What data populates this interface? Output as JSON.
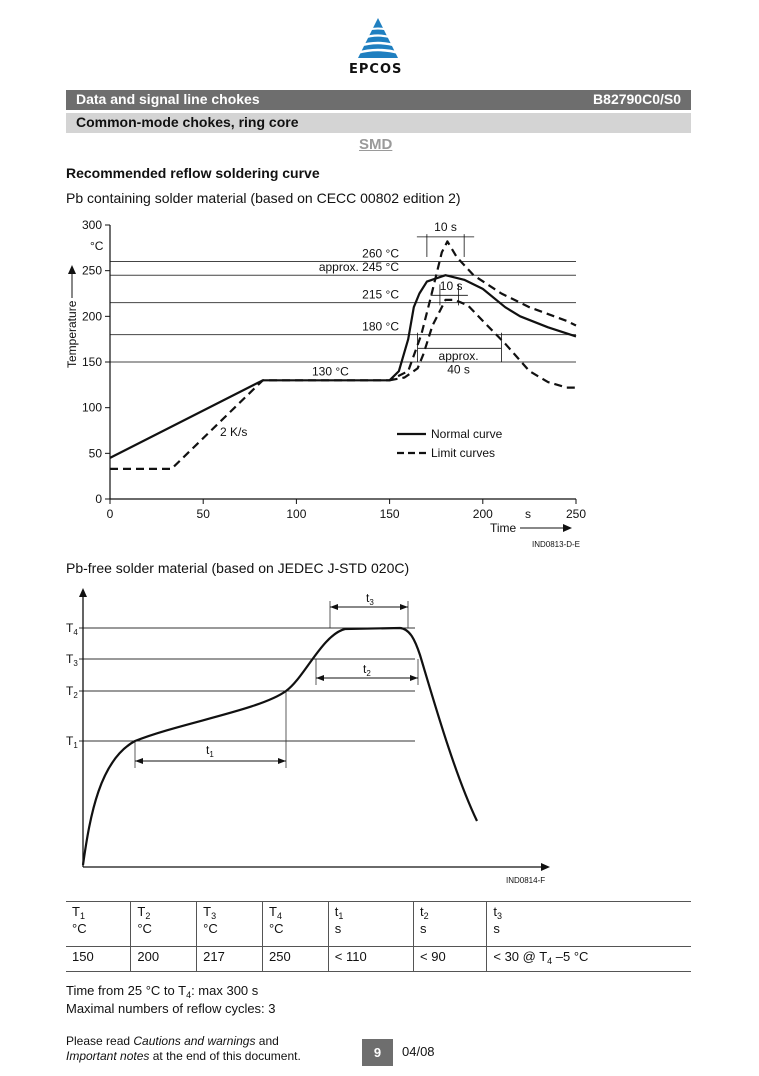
{
  "brand": {
    "name": "EPCOS"
  },
  "header": {
    "title": "Data and signal line chokes",
    "part_number": "B82790C0/S0",
    "subtitle": "Common-mode chokes, ring core",
    "package": "SMD"
  },
  "section": {
    "heading": "Recommended reflow soldering curve",
    "pb_caption": "Pb containing solder material (based on CECC 00802 edition 2)",
    "pbfree_caption": "Pb-free solder material (based on JEDEC J-STD 020C)"
  },
  "chart_data": [
    {
      "type": "line",
      "ylabel": "Temperature",
      "yunit": "°C",
      "xlabel": "Time",
      "xunit": "s",
      "xlim": [
        0,
        250
      ],
      "ylim": [
        0,
        300
      ],
      "xticks": [
        0,
        50,
        100,
        150,
        200,
        250
      ],
      "yticks": [
        0,
        50,
        100,
        150,
        200,
        250,
        300
      ],
      "reference_lines": [
        {
          "y": 260,
          "label": "260 °C"
        },
        {
          "y": 245,
          "label": "approx. 245 °C"
        },
        {
          "y": 215,
          "label": "215 °C"
        },
        {
          "y": 180,
          "label": "180 °C"
        },
        {
          "y": 150,
          "label": ""
        }
      ],
      "annotations": {
        "plateau": "130 °C",
        "ramp": "2 K/s",
        "peak_window_top": "10 s",
        "peak_window_mid": "10 s",
        "above_180_line1": "approx.",
        "above_180_line2": "40 s"
      },
      "legend": {
        "position": "bottom-right",
        "normal": "Normal curve",
        "limit": "Limit curves"
      },
      "series": [
        {
          "name": "Normal curve",
          "style": "solid",
          "x": [
            0,
            82,
            150,
            155,
            160,
            163,
            166,
            170,
            180,
            190,
            200,
            212,
            220,
            235,
            250
          ],
          "y": [
            45,
            130,
            130,
            140,
            175,
            210,
            225,
            238,
            245,
            240,
            230,
            210,
            200,
            188,
            178
          ]
        },
        {
          "name": "Limit curves",
          "style": "dashed",
          "x": [
            0,
            33,
            82,
            150,
            160,
            167,
            172,
            178,
            181,
            186,
            195,
            210,
            225,
            245,
            250
          ],
          "y": [
            33,
            33,
            130,
            130,
            140,
            180,
            220,
            270,
            282,
            265,
            245,
            225,
            210,
            195,
            190
          ]
        },
        {
          "name": "",
          "style": "dashed",
          "x": [
            150,
            158,
            165,
            168,
            173,
            180,
            185,
            192,
            200,
            212,
            225,
            235,
            245,
            250
          ],
          "y": [
            130,
            133,
            143,
            158,
            190,
            218,
            218,
            212,
            195,
            170,
            140,
            128,
            122,
            122
          ]
        }
      ],
      "code": "IND0813-D-E"
    },
    {
      "type": "line",
      "ylabels": [
        "T1",
        "T2",
        "T3",
        "T4"
      ],
      "intervals": [
        "t1",
        "t2",
        "t3"
      ],
      "code": "IND0814-F"
    }
  ],
  "table": {
    "headers": [
      {
        "sym": "T",
        "sub": "1",
        "unit": "°C"
      },
      {
        "sym": "T",
        "sub": "2",
        "unit": "°C"
      },
      {
        "sym": "T",
        "sub": "3",
        "unit": "°C"
      },
      {
        "sym": "T",
        "sub": "4",
        "unit": "°C"
      },
      {
        "sym": "t",
        "sub": "1",
        "unit": "s"
      },
      {
        "sym": "t",
        "sub": "2",
        "unit": "s"
      },
      {
        "sym": "t",
        "sub": "3",
        "unit": "s"
      }
    ],
    "values": [
      "150",
      "200",
      "217",
      "250",
      "< 110",
      "< 90"
    ],
    "last_value": {
      "prefix": "< 30 @ T",
      "sub": "4",
      "suffix": " –5 °C"
    }
  },
  "notes": {
    "time_prefix": "Time from 25 °C to T",
    "time_sub": "4",
    "time_suffix": ": max 300 s",
    "cycles": "Maximal numbers of reflow cycles: 3"
  },
  "footer": {
    "read": "Please read ",
    "cautions": "Cautions and warnings",
    "and": " and",
    "important": "Important notes",
    "end": " at the end of this document.",
    "page": "9",
    "date": "04/08"
  }
}
